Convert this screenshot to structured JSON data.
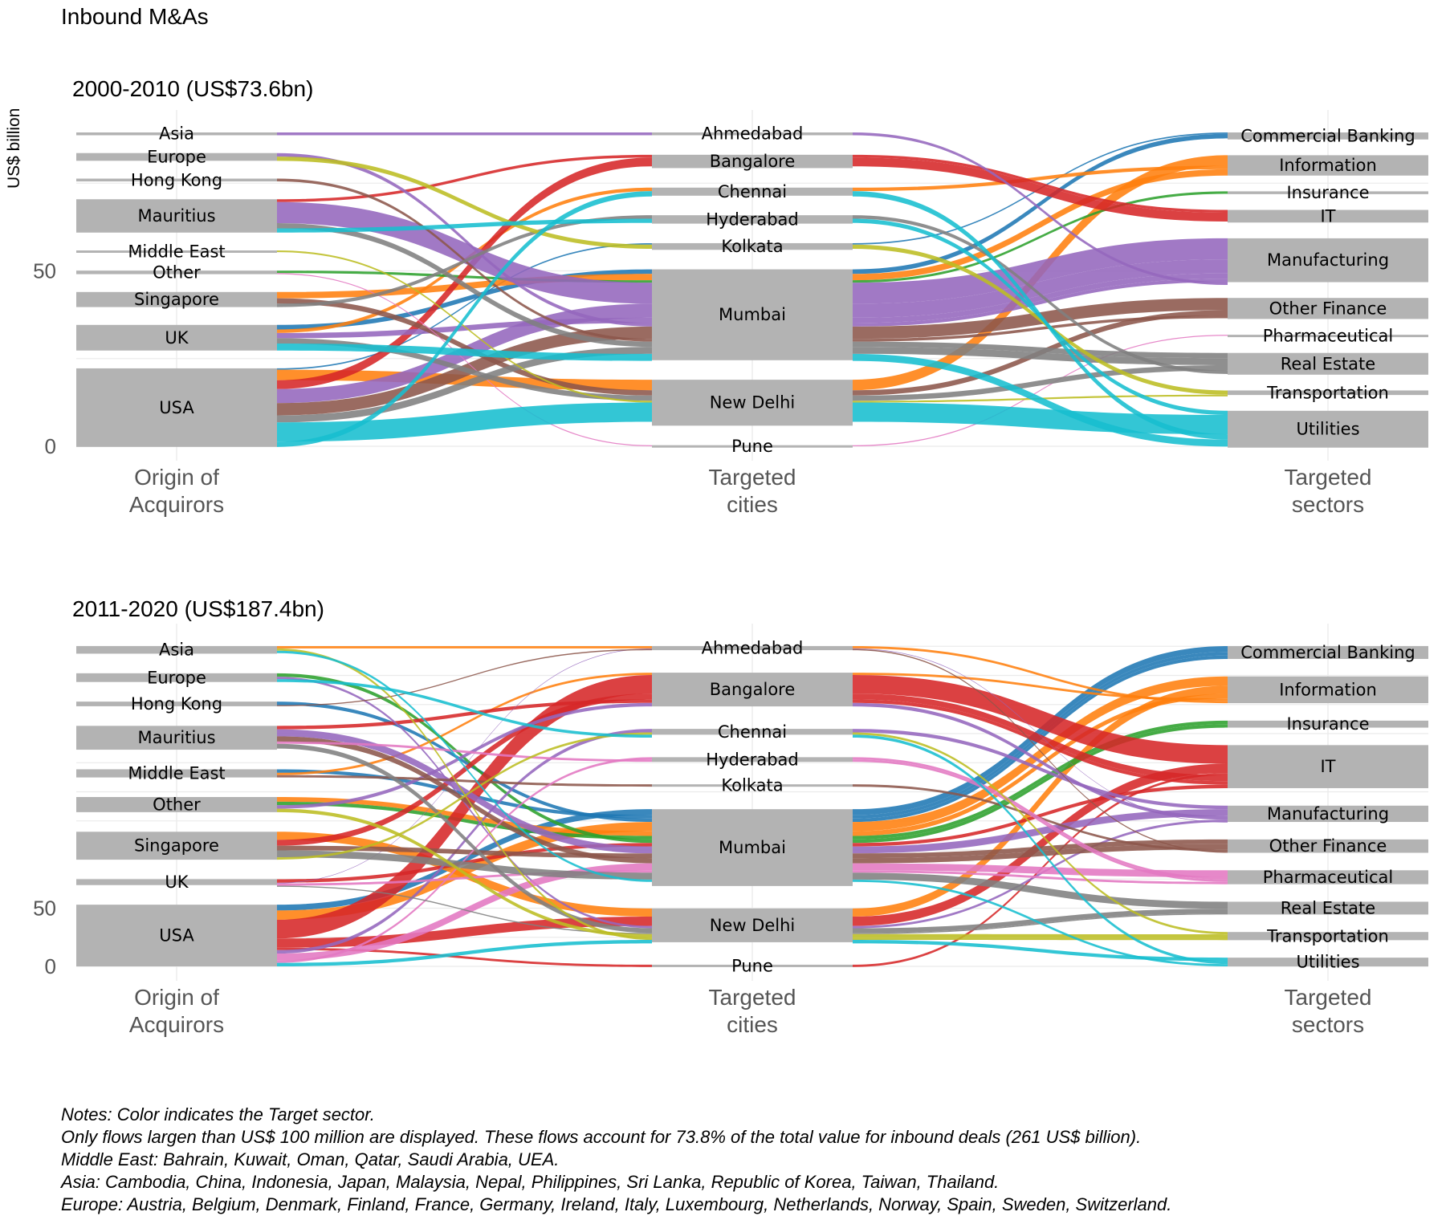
{
  "page_title": "Inbound M&As",
  "y_axis_label": "US$ billion",
  "axis_labels": [
    [
      "Origin of",
      "Acquirors"
    ],
    [
      "Targeted",
      "cities"
    ],
    [
      "Targeted",
      "sectors"
    ]
  ],
  "notes": [
    "Notes: Color indicates the Target sector.",
    "Only flows largen than US$ 100 million are displayed. These flows account for 73.8% of the total value for inbound deals (261 US$ billion).",
    "Middle East: Bahrain, Kuwait, Oman, Qatar, Saudi Arabia, UEA.",
    "Asia: Cambodia, China, Indonesia, Japan, Malaysia, Nepal, Philippines, Sri Lanka, Republic of Korea, Taiwan, Thailand.",
    "Europe: Austria, Belgium, Denmark, Finland, France, Germany, Ireland, Italy, Luxembourg, Netherlands, Norway, Spain, Sweden, Switzerland."
  ],
  "sector_colors": {
    "Commercial Banking": "#1f77b4",
    "Information": "#ff7f0e",
    "Insurance": "#2ca02c",
    "IT": "#d62728",
    "Manufacturing": "#9467bd",
    "Other Finance": "#8c564b",
    "Pharmaceutical": "#e377c2",
    "Real Estate": "#7f7f7f",
    "Transportation": "#bcbd22",
    "Utilities": "#17becf"
  },
  "node_color": "#b3b3b3",
  "chart_data": [
    {
      "type": "sankey",
      "title": "2000-2010 (US$73.6bn)",
      "ylabel": "US$ billion",
      "yticks": [
        0,
        50
      ],
      "axes": [
        "Origin of Acquirors",
        "Targeted cities",
        "Targeted sectors"
      ],
      "origins": [
        {
          "name": "Asia",
          "value": 0.8
        },
        {
          "name": "Europe",
          "value": 2.2
        },
        {
          "name": "Hong Kong",
          "value": 0.8
        },
        {
          "name": "Mauritius",
          "value": 9.5
        },
        {
          "name": "Middle East",
          "value": 0.5
        },
        {
          "name": "Other",
          "value": 1.0
        },
        {
          "name": "Singapore",
          "value": 4.3
        },
        {
          "name": "UK",
          "value": 7.3
        },
        {
          "name": "USA",
          "value": 22.4
        }
      ],
      "cities": [
        {
          "name": "Ahmedabad",
          "value": 0.8
        },
        {
          "name": "Bangalore",
          "value": 3.8
        },
        {
          "name": "Chennai",
          "value": 2.3
        },
        {
          "name": "Hyderabad",
          "value": 2.4
        },
        {
          "name": "Kolkata",
          "value": 1.9
        },
        {
          "name": "Mumbai",
          "value": 25.9
        },
        {
          "name": "New Delhi",
          "value": 13.1
        },
        {
          "name": "Pune",
          "value": 0.3
        }
      ],
      "sectors": [
        {
          "name": "Commercial Banking",
          "value": 2.0
        },
        {
          "name": "Information",
          "value": 5.8
        },
        {
          "name": "Insurance",
          "value": 0.8
        },
        {
          "name": "IT",
          "value": 3.6
        },
        {
          "name": "Manufacturing",
          "value": 12.5
        },
        {
          "name": "Other Finance",
          "value": 6.0
        },
        {
          "name": "Pharmaceutical",
          "value": 0.3
        },
        {
          "name": "Real Estate",
          "value": 6.2
        },
        {
          "name": "Transportation",
          "value": 1.3
        },
        {
          "name": "Utilities",
          "value": 10.5
        }
      ],
      "flows": [
        [
          "Mauritius",
          "Mumbai",
          "Manufacturing",
          6.0
        ],
        [
          "Mauritius",
          "Mumbai",
          "Real Estate",
          1.5
        ],
        [
          "Mauritius",
          "Hyderabad",
          "Utilities",
          1.2
        ],
        [
          "Mauritius",
          "Bangalore",
          "IT",
          0.8
        ],
        [
          "USA",
          "New Delhi",
          "Utilities",
          5.5
        ],
        [
          "USA",
          "Mumbai",
          "Manufacturing",
          4.0
        ],
        [
          "USA",
          "Mumbai",
          "Other Finance",
          3.5
        ],
        [
          "USA",
          "New Delhi",
          "Information",
          3.0
        ],
        [
          "USA",
          "Bangalore",
          "IT",
          2.5
        ],
        [
          "USA",
          "Mumbai",
          "Real Estate",
          2.0
        ],
        [
          "USA",
          "Chennai",
          "Utilities",
          1.5
        ],
        [
          "USA",
          "Kolkata",
          "Commercial Banking",
          0.4
        ],
        [
          "UK",
          "Mumbai",
          "Utilities",
          2.0
        ],
        [
          "UK",
          "Mumbai",
          "Manufacturing",
          1.5
        ],
        [
          "UK",
          "New Delhi",
          "Real Estate",
          1.5
        ],
        [
          "UK",
          "Mumbai",
          "Commercial Banking",
          1.3
        ],
        [
          "UK",
          "Chennai",
          "Information",
          1.0
        ],
        [
          "Singapore",
          "Mumbai",
          "Information",
          1.8
        ],
        [
          "Singapore",
          "New Delhi",
          "Other Finance",
          1.5
        ],
        [
          "Singapore",
          "Hyderabad",
          "Real Estate",
          1.0
        ],
        [
          "Europe",
          "Mumbai",
          "Manufacturing",
          1.0
        ],
        [
          "Europe",
          "Kolkata",
          "Transportation",
          1.2
        ],
        [
          "Hong Kong",
          "Mumbai",
          "Other Finance",
          0.8
        ],
        [
          "Asia",
          "Ahmedabad",
          "Manufacturing",
          0.8
        ],
        [
          "Middle East",
          "New Delhi",
          "Transportation",
          0.5
        ],
        [
          "Other",
          "Pune",
          "Pharmaceutical",
          0.3
        ],
        [
          "Other",
          "Mumbai",
          "Insurance",
          0.7
        ]
      ]
    },
    {
      "type": "sankey",
      "title": "2011-2020 (US$187.4bn)",
      "ylabel": "US$ billion",
      "yticks": [
        0,
        50
      ],
      "axes": [
        "Origin of Acquirors",
        "Targeted cities",
        "Targeted sectors"
      ],
      "origins": [
        {
          "name": "Asia",
          "value": 6.5
        },
        {
          "name": "Europe",
          "value": 7.5
        },
        {
          "name": "Hong Kong",
          "value": 4.0
        },
        {
          "name": "Mauritius",
          "value": 20.5
        },
        {
          "name": "Middle East",
          "value": 7.0
        },
        {
          "name": "Other",
          "value": 13.0
        },
        {
          "name": "Singapore",
          "value": 24.0
        },
        {
          "name": "UK",
          "value": 5.0
        },
        {
          "name": "USA",
          "value": 53.0
        }
      ],
      "cities": [
        {
          "name": "Ahmedabad",
          "value": 3.5
        },
        {
          "name": "Bangalore",
          "value": 29.0
        },
        {
          "name": "Chennai",
          "value": 5.0
        },
        {
          "name": "Hyderabad",
          "value": 4.0
        },
        {
          "name": "Kolkata",
          "value": 2.0
        },
        {
          "name": "Mumbai",
          "value": 66.0
        },
        {
          "name": "New Delhi",
          "value": 29.0
        },
        {
          "name": "Pune",
          "value": 1.5
        }
      ],
      "sectors": [
        {
          "name": "Commercial Banking",
          "value": 11.0
        },
        {
          "name": "Information",
          "value": 23.0
        },
        {
          "name": "Insurance",
          "value": 6.0
        },
        {
          "name": "IT",
          "value": 37.0
        },
        {
          "name": "Manufacturing",
          "value": 14.0
        },
        {
          "name": "Other Finance",
          "value": 11.5
        },
        {
          "name": "Pharmaceutical",
          "value": 12.0
        },
        {
          "name": "Real Estate",
          "value": 11.0
        },
        {
          "name": "Transportation",
          "value": 7.0
        },
        {
          "name": "Utilities",
          "value": 7.5
        }
      ],
      "flows": [
        [
          "USA",
          "Bangalore",
          "IT",
          16.0
        ],
        [
          "USA",
          "Mumbai",
          "Information",
          8.0
        ],
        [
          "USA",
          "Mumbai",
          "Commercial Banking",
          5.0
        ],
        [
          "USA",
          "New Delhi",
          "IT",
          8.0
        ],
        [
          "USA",
          "Mumbai",
          "Pharmaceutical",
          6.0
        ],
        [
          "USA",
          "Chennai",
          "Manufacturing",
          3.0
        ],
        [
          "USA",
          "New Delhi",
          "Utilities",
          3.0
        ],
        [
          "USA",
          "Hyderabad",
          "Pharmaceutical",
          2.0
        ],
        [
          "USA",
          "Pune",
          "IT",
          2.0
        ],
        [
          "Singapore",
          "New Delhi",
          "Information",
          7.0
        ],
        [
          "Singapore",
          "Mumbai",
          "Real Estate",
          6.0
        ],
        [
          "Singapore",
          "Bangalore",
          "IT",
          5.0
        ],
        [
          "Singapore",
          "Mumbai",
          "Other Finance",
          4.0
        ],
        [
          "Singapore",
          "Chennai",
          "Transportation",
          2.0
        ],
        [
          "Mauritius",
          "Mumbai",
          "Manufacturing",
          6.0
        ],
        [
          "Mauritius",
          "Mumbai",
          "Other Finance",
          4.5
        ],
        [
          "Mauritius",
          "New Delhi",
          "Real Estate",
          4.0
        ],
        [
          "Mauritius",
          "Bangalore",
          "IT",
          3.0
        ],
        [
          "Mauritius",
          "Hyderabad",
          "Pharmaceutical",
          2.0
        ],
        [
          "Other",
          "Mumbai",
          "Information",
          4.0
        ],
        [
          "Other",
          "Mumbai",
          "Insurance",
          3.0
        ],
        [
          "Other",
          "New Delhi",
          "Transportation",
          3.0
        ],
        [
          "Other",
          "Bangalore",
          "Manufacturing",
          3.0
        ],
        [
          "Europe",
          "Mumbai",
          "Insurance",
          3.0
        ],
        [
          "Europe",
          "New Delhi",
          "Manufacturing",
          2.0
        ],
        [
          "Europe",
          "Chennai",
          "Utilities",
          2.5
        ],
        [
          "Middle East",
          "Mumbai",
          "Commercial Banking",
          3.0
        ],
        [
          "Middle East",
          "Bangalore",
          "Information",
          2.0
        ],
        [
          "Middle East",
          "Kolkata",
          "Other Finance",
          2.0
        ],
        [
          "Asia",
          "Mumbai",
          "Utilities",
          2.0
        ],
        [
          "Asia",
          "Ahmedabad",
          "Information",
          2.0
        ],
        [
          "Asia",
          "New Delhi",
          "Transportation",
          2.0
        ],
        [
          "Hong Kong",
          "Mumbai",
          "Commercial Banking",
          3.0
        ],
        [
          "Hong Kong",
          "Ahmedabad",
          "Other Finance",
          1.0
        ],
        [
          "UK",
          "Mumbai",
          "Pharmaceutical",
          2.0
        ],
        [
          "UK",
          "New Delhi",
          "Real Estate",
          1.0
        ],
        [
          "UK",
          "Mumbai",
          "IT",
          3.0
        ],
        [
          "UK",
          "Ahmedabad",
          "Manufacturing",
          0.5
        ],
        [
          "USA",
          "Mumbai",
          "Other Finance",
          0.0
        ]
      ]
    }
  ]
}
